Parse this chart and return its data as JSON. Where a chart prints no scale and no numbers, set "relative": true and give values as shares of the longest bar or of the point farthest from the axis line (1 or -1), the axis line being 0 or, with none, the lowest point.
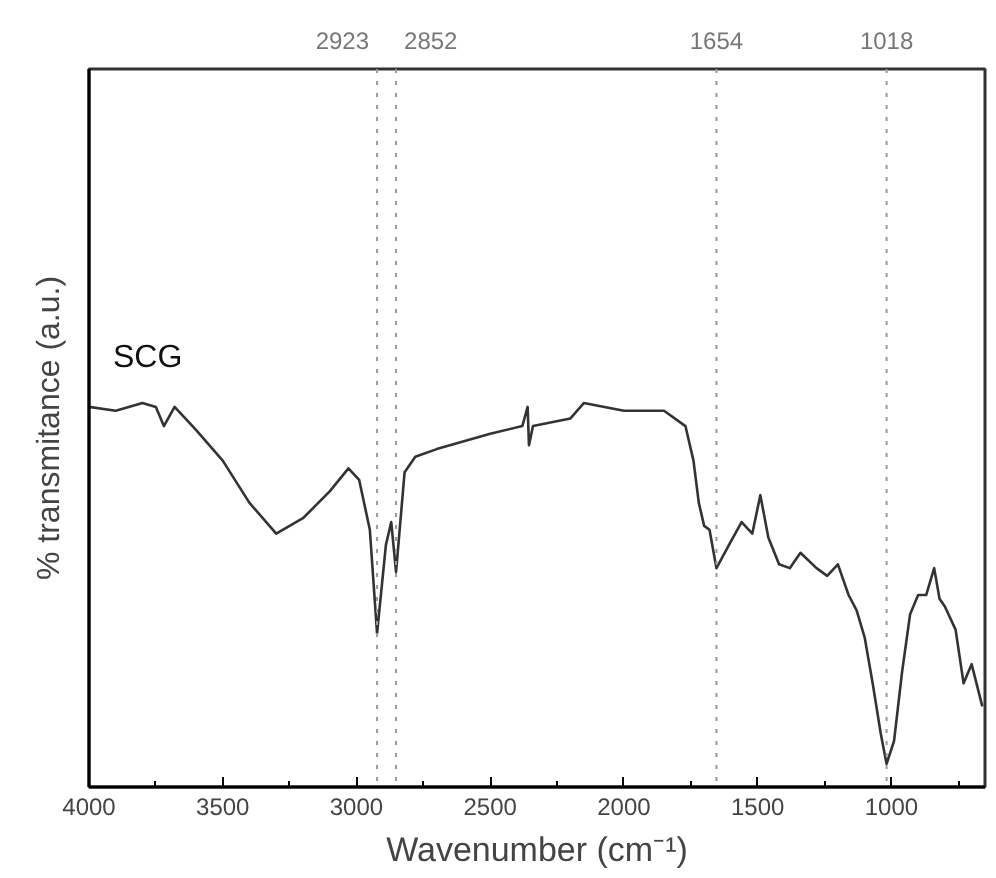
{
  "chart_data": {
    "type": "line",
    "relative": true,
    "xlabel": "Wavenumber (cm⁻¹)",
    "ylabel": "% transmitance (a.u.)",
    "xlim": [
      4000,
      650
    ],
    "xticks": [
      4000,
      {
        "value": 3750,
        "label": null
      },
      3500,
      {
        "value": 3250,
        "label": null
      },
      3000,
      {
        "value": 2750,
        "label": null
      },
      2500,
      {
        "value": 2250,
        "label": null
      },
      2000,
      {
        "value": 1750,
        "label": null
      },
      1500,
      {
        "value": 1250,
        "label": null
      },
      1000,
      {
        "value": 750,
        "label": null
      }
    ],
    "grid": false,
    "legend": false,
    "marker": "none",
    "line_style": "solid",
    "ref_lines": [
      {
        "axis": "x",
        "value": 2923,
        "label": "2923",
        "color": "#999999",
        "line_style": "dotted"
      },
      {
        "axis": "x",
        "value": 2852,
        "label": "2852",
        "color": "#999999",
        "line_style": "dotted"
      },
      {
        "axis": "x",
        "value": 1654,
        "label": "1654",
        "color": "#999999",
        "line_style": "dotted"
      },
      {
        "axis": "x",
        "value": 1018,
        "label": "1018",
        "color": "#999999",
        "line_style": "dotted"
      }
    ],
    "series": [
      {
        "name": "SCG",
        "color": "#333333",
        "x": [
          4000,
          3900,
          3800,
          3750,
          3720,
          3680,
          3600,
          3500,
          3400,
          3300,
          3200,
          3100,
          3030,
          2990,
          2950,
          2923,
          2890,
          2870,
          2852,
          2820,
          2780,
          2700,
          2500,
          2380,
          2360,
          2355,
          2340,
          2200,
          2150,
          2000,
          1850,
          1770,
          1740,
          1720,
          1700,
          1680,
          1654,
          1600,
          1560,
          1520,
          1490,
          1460,
          1420,
          1380,
          1340,
          1280,
          1240,
          1200,
          1160,
          1130,
          1100,
          1070,
          1040,
          1018,
          990,
          960,
          930,
          900,
          870,
          840,
          820,
          800,
          760,
          730,
          700,
          660
        ],
        "values": [
          0.99,
          0.98,
          1.0,
          0.99,
          0.94,
          0.99,
          0.93,
          0.85,
          0.74,
          0.66,
          0.7,
          0.77,
          0.83,
          0.8,
          0.67,
          0.4,
          0.63,
          0.69,
          0.56,
          0.82,
          0.86,
          0.88,
          0.92,
          0.94,
          0.99,
          0.89,
          0.94,
          0.96,
          1.0,
          0.98,
          0.98,
          0.94,
          0.85,
          0.74,
          0.68,
          0.67,
          0.57,
          0.64,
          0.69,
          0.66,
          0.76,
          0.65,
          0.58,
          0.57,
          0.61,
          0.57,
          0.55,
          0.58,
          0.5,
          0.46,
          0.39,
          0.27,
          0.14,
          0.06,
          0.12,
          0.3,
          0.45,
          0.5,
          0.5,
          0.57,
          0.49,
          0.47,
          0.41,
          0.27,
          0.32,
          0.21
        ]
      }
    ]
  }
}
